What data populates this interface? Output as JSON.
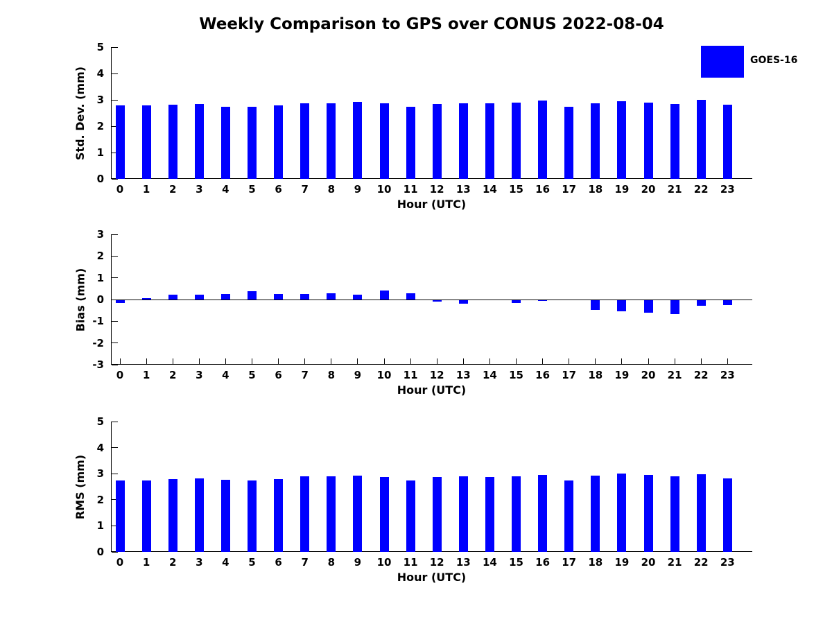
{
  "title": "Weekly Comparison to GPS over CONUS 2022-08-04",
  "legend": {
    "label": "GOES-16",
    "swatch_color": "#0000FF"
  },
  "colors": {
    "bar": "#0000FF",
    "axis": "#000000",
    "text": "#000000",
    "background": "#FFFFFF"
  },
  "chart_data": [
    {
      "type": "bar",
      "panel": "std-dev",
      "ylabel": "Std. Dev. (mm)",
      "xlabel": "Hour (UTC)",
      "series_name": "GOES-16",
      "categories": [
        "0",
        "1",
        "2",
        "3",
        "4",
        "5",
        "6",
        "7",
        "8",
        "9",
        "10",
        "11",
        "12",
        "13",
        "14",
        "15",
        "16",
        "17",
        "18",
        "19",
        "20",
        "21",
        "22",
        "23"
      ],
      "values": [
        2.78,
        2.78,
        2.82,
        2.84,
        2.75,
        2.73,
        2.78,
        2.88,
        2.88,
        2.91,
        2.86,
        2.73,
        2.85,
        2.88,
        2.87,
        2.9,
        2.97,
        2.73,
        2.88,
        2.95,
        2.9,
        2.83,
        2.99,
        2.81
      ],
      "ylim": [
        0,
        5
      ],
      "yticks": [
        "0",
        "1",
        "2",
        "3",
        "4",
        "5"
      ],
      "grid": false,
      "legend_position": "top-right-of-figure"
    },
    {
      "type": "bar",
      "panel": "bias",
      "ylabel": "Bias (mm)",
      "xlabel": "Hour (UTC)",
      "series_name": "GOES-16",
      "categories": [
        "0",
        "1",
        "2",
        "3",
        "4",
        "5",
        "6",
        "7",
        "8",
        "9",
        "10",
        "11",
        "12",
        "13",
        "14",
        "15",
        "16",
        "17",
        "18",
        "19",
        "20",
        "21",
        "22",
        "23"
      ],
      "values": [
        -0.15,
        0.07,
        0.22,
        0.22,
        0.27,
        0.37,
        0.25,
        0.26,
        0.28,
        0.23,
        0.43,
        0.28,
        -0.08,
        -0.2,
        0.0,
        -0.17,
        -0.05,
        0.0,
        -0.47,
        -0.55,
        -0.6,
        -0.68,
        -0.3,
        -0.25
      ],
      "ylim": [
        -3,
        3
      ],
      "yticks": [
        "-3",
        "-2",
        "-1",
        "0",
        "1",
        "2",
        "3"
      ],
      "zero_line": true,
      "grid": false
    },
    {
      "type": "bar",
      "panel": "rms",
      "ylabel": "RMS (mm)",
      "xlabel": "Hour (UTC)",
      "series_name": "GOES-16",
      "categories": [
        "0",
        "1",
        "2",
        "3",
        "4",
        "5",
        "6",
        "7",
        "8",
        "9",
        "10",
        "11",
        "12",
        "13",
        "14",
        "15",
        "16",
        "17",
        "18",
        "19",
        "20",
        "21",
        "22",
        "23"
      ],
      "values": [
        2.75,
        2.75,
        2.79,
        2.82,
        2.76,
        2.75,
        2.79,
        2.9,
        2.9,
        2.93,
        2.88,
        2.74,
        2.86,
        2.89,
        2.87,
        2.89,
        2.96,
        2.74,
        2.92,
        3.01,
        2.96,
        2.89,
        2.99,
        2.82
      ],
      "ylim": [
        0,
        5
      ],
      "yticks": [
        "0",
        "1",
        "2",
        "3",
        "4",
        "5"
      ],
      "grid": false
    }
  ]
}
